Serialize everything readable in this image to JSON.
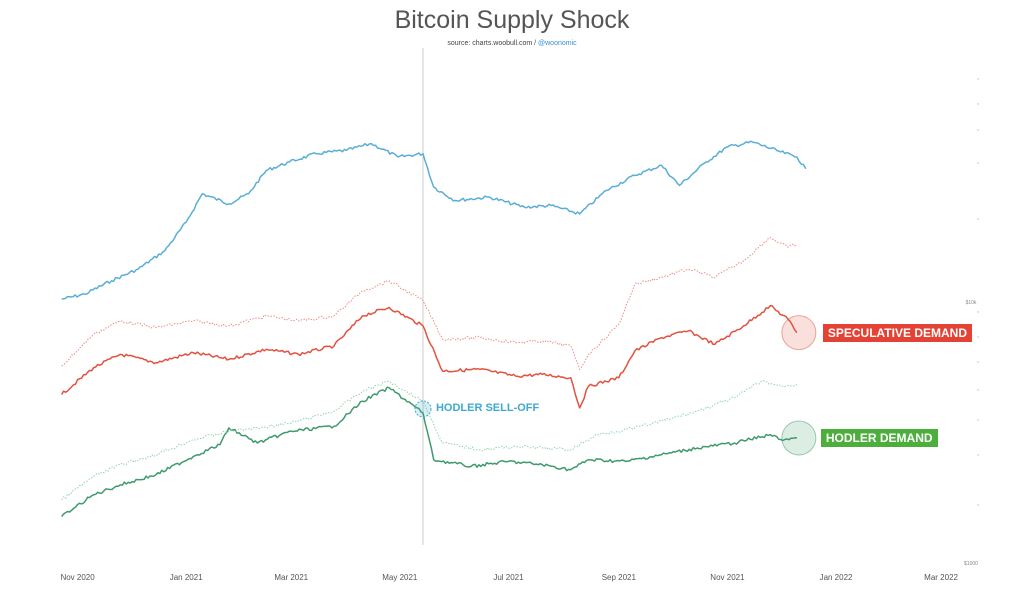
{
  "title": "Bitcoin Supply Shock",
  "source_text": "source: charts.woobull.com / ",
  "source_handle": "@woonomic",
  "colors": {
    "blue": "#5aaed6",
    "red": "#e2523f",
    "red_light": "#ec8e82",
    "green": "#3f9a6c",
    "green_light": "#93d3ae",
    "label_red": "#e34234",
    "label_green": "#4caf3c",
    "hodler_selloff": "#3ea9cf",
    "vline": "#cccccc"
  },
  "annotations": {
    "speculative": "SPECULATIVE DEMAND",
    "hodler": "HODLER DEMAND",
    "selloff": "HODLER SELL-OFF"
  },
  "chart_data": {
    "type": "line",
    "title": "Bitcoin Supply Shock",
    "x_tick_labels": [
      "Nov 2020",
      "Jan 2021",
      "Mar 2021",
      "May 2021",
      "Jul 2021",
      "Sep 2021",
      "Nov 2021",
      "Jan 2022",
      "Mar 2022"
    ],
    "x_ticks": [
      "2020-11-01",
      "2021-01-01",
      "2021-03-01",
      "2021-05-01",
      "2021-07-01",
      "2021-09-01",
      "2021-11-01",
      "2022-01-01",
      "2022-03-01"
    ],
    "xlim": [
      "2020-10-21",
      "2022-03-15"
    ],
    "y_axis_labels": [
      "$10k",
      "$1000"
    ],
    "grid": false,
    "vertical_marker_date": "2021-05-14",
    "series": [
      {
        "id": "top",
        "style": "solid",
        "color": "#5aaed6",
        "points": [
          [
            "2020-10-23",
            18.3
          ],
          [
            "2020-11-05",
            18.0
          ],
          [
            "2020-11-20",
            17.2
          ],
          [
            "2020-12-05",
            16.5
          ],
          [
            "2020-12-20",
            15.4
          ],
          [
            "2021-01-01",
            13.7
          ],
          [
            "2021-01-10",
            12.0
          ],
          [
            "2021-01-25",
            12.6
          ],
          [
            "2021-02-05",
            12.0
          ],
          [
            "2021-02-15",
            10.6
          ],
          [
            "2021-02-28",
            10.1
          ],
          [
            "2021-03-15",
            9.6
          ],
          [
            "2021-04-01",
            9.4
          ],
          [
            "2021-04-15",
            9.0
          ],
          [
            "2021-04-30",
            9.8
          ],
          [
            "2021-05-14",
            9.6
          ],
          [
            "2021-05-20",
            11.6
          ],
          [
            "2021-06-01",
            12.4
          ],
          [
            "2021-06-20",
            12.2
          ],
          [
            "2021-07-10",
            12.8
          ],
          [
            "2021-07-25",
            12.7
          ],
          [
            "2021-08-10",
            13.2
          ],
          [
            "2021-08-25",
            11.8
          ],
          [
            "2021-09-10",
            10.9
          ],
          [
            "2021-09-25",
            10.3
          ],
          [
            "2021-10-05",
            11.5
          ],
          [
            "2021-10-20",
            10.1
          ],
          [
            "2021-11-01",
            9.2
          ],
          [
            "2021-11-15",
            8.9
          ],
          [
            "2021-12-01",
            9.5
          ],
          [
            "2021-12-10",
            9.8
          ],
          [
            "2021-12-15",
            10.5
          ]
        ]
      },
      {
        "id": "speculative",
        "name": "SPECULATIVE DEMAND",
        "style": "solid",
        "color": "#e2523f",
        "points": [
          [
            "2020-10-23",
            24.0
          ],
          [
            "2020-11-10",
            22.4
          ],
          [
            "2020-11-25",
            21.6
          ],
          [
            "2020-12-15",
            22.1
          ],
          [
            "2021-01-05",
            21.5
          ],
          [
            "2021-01-25",
            21.9
          ],
          [
            "2021-02-15",
            21.3
          ],
          [
            "2021-03-05",
            21.6
          ],
          [
            "2021-03-25",
            21.1
          ],
          [
            "2021-04-10",
            19.3
          ],
          [
            "2021-04-25",
            18.8
          ],
          [
            "2021-05-14",
            19.9
          ],
          [
            "2021-05-25",
            22.6
          ],
          [
            "2021-06-15",
            22.5
          ],
          [
            "2021-07-05",
            22.9
          ],
          [
            "2021-07-20",
            22.8
          ],
          [
            "2021-08-05",
            23.0
          ],
          [
            "2021-08-10",
            24.8
          ],
          [
            "2021-08-15",
            23.5
          ],
          [
            "2021-09-01",
            23.0
          ],
          [
            "2021-09-10",
            21.4
          ],
          [
            "2021-09-25",
            20.6
          ],
          [
            "2021-10-10",
            20.2
          ],
          [
            "2021-10-25",
            21.0
          ],
          [
            "2021-11-10",
            19.9
          ],
          [
            "2021-11-25",
            18.7
          ],
          [
            "2021-12-05",
            19.5
          ],
          [
            "2021-12-10",
            20.3
          ]
        ]
      },
      {
        "id": "speculative_upper",
        "style": "dotted",
        "color": "#ec8e82",
        "points": [
          [
            "2020-10-23",
            22.3
          ],
          [
            "2020-11-10",
            20.4
          ],
          [
            "2020-11-25",
            19.6
          ],
          [
            "2020-12-15",
            20.0
          ],
          [
            "2021-01-05",
            19.6
          ],
          [
            "2021-01-25",
            19.9
          ],
          [
            "2021-02-15",
            19.3
          ],
          [
            "2021-03-05",
            19.6
          ],
          [
            "2021-03-25",
            19.3
          ],
          [
            "2021-04-10",
            17.8
          ],
          [
            "2021-04-25",
            17.2
          ],
          [
            "2021-05-14",
            18.4
          ],
          [
            "2021-05-25",
            20.7
          ],
          [
            "2021-06-15",
            20.6
          ],
          [
            "2021-07-05",
            20.9
          ],
          [
            "2021-07-20",
            20.8
          ],
          [
            "2021-08-05",
            21.1
          ],
          [
            "2021-08-10",
            22.5
          ],
          [
            "2021-08-15",
            21.6
          ],
          [
            "2021-09-01",
            19.8
          ],
          [
            "2021-09-10",
            17.4
          ],
          [
            "2021-09-25",
            17.0
          ],
          [
            "2021-10-10",
            16.5
          ],
          [
            "2021-10-25",
            17.0
          ],
          [
            "2021-11-10",
            16.0
          ],
          [
            "2021-11-25",
            14.6
          ],
          [
            "2021-12-05",
            15.2
          ],
          [
            "2021-12-10",
            15.0
          ]
        ]
      },
      {
        "id": "hodler",
        "name": "HODLER DEMAND",
        "style": "solid",
        "color": "#3f9a6c",
        "points": [
          [
            "2020-10-23",
            31.3
          ],
          [
            "2020-11-10",
            30.0
          ],
          [
            "2020-11-25",
            29.4
          ],
          [
            "2020-12-15",
            28.8
          ],
          [
            "2021-01-05",
            27.7
          ],
          [
            "2021-01-20",
            27.0
          ],
          [
            "2021-01-25",
            26.0
          ],
          [
            "2021-02-10",
            26.9
          ],
          [
            "2021-03-01",
            26.2
          ],
          [
            "2021-03-25",
            25.9
          ],
          [
            "2021-04-10",
            24.4
          ],
          [
            "2021-04-25",
            23.6
          ],
          [
            "2021-05-14",
            25.1
          ],
          [
            "2021-05-20",
            27.9
          ],
          [
            "2021-06-10",
            28.3
          ],
          [
            "2021-07-01",
            28.0
          ],
          [
            "2021-07-20",
            28.2
          ],
          [
            "2021-08-05",
            28.5
          ],
          [
            "2021-08-15",
            27.9
          ],
          [
            "2021-09-05",
            28.0
          ],
          [
            "2021-09-25",
            27.6
          ],
          [
            "2021-10-15",
            27.2
          ],
          [
            "2021-11-05",
            26.9
          ],
          [
            "2021-11-25",
            26.4
          ],
          [
            "2021-12-01",
            26.7
          ],
          [
            "2021-12-10",
            26.6
          ]
        ]
      },
      {
        "id": "hodler_upper",
        "style": "dotted",
        "color": "#93d3ae",
        "points": [
          [
            "2020-10-23",
            30.3
          ],
          [
            "2020-11-10",
            28.9
          ],
          [
            "2020-11-25",
            28.2
          ],
          [
            "2020-12-15",
            27.6
          ],
          [
            "2021-01-05",
            26.7
          ],
          [
            "2021-01-25",
            26.2
          ],
          [
            "2021-02-10",
            26.0
          ],
          [
            "2021-03-01",
            25.7
          ],
          [
            "2021-03-25",
            25.0
          ],
          [
            "2021-04-10",
            23.8
          ],
          [
            "2021-04-25",
            23.2
          ],
          [
            "2021-05-14",
            24.4
          ],
          [
            "2021-05-25",
            26.9
          ],
          [
            "2021-06-15",
            27.3
          ],
          [
            "2021-07-05",
            27.1
          ],
          [
            "2021-07-20",
            27.2
          ],
          [
            "2021-08-05",
            27.3
          ],
          [
            "2021-08-20",
            26.4
          ],
          [
            "2021-09-10",
            26.0
          ],
          [
            "2021-09-25",
            25.6
          ],
          [
            "2021-10-15",
            25.0
          ],
          [
            "2021-11-05",
            24.2
          ],
          [
            "2021-11-20",
            23.2
          ],
          [
            "2021-12-01",
            23.5
          ],
          [
            "2021-12-10",
            23.4
          ]
        ]
      }
    ]
  }
}
